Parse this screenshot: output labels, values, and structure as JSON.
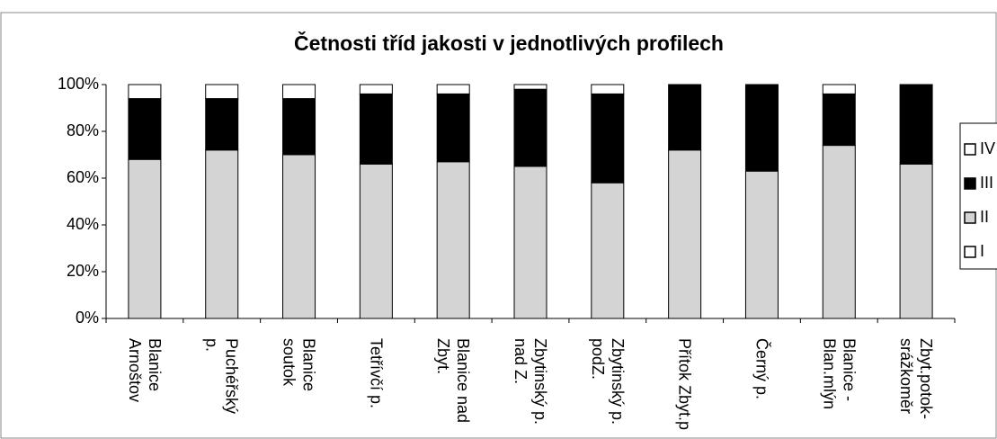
{
  "chart_data": {
    "type": "stacked_bar_percent",
    "title": "Četnosti tříd jakosti v jednotlivých profilech",
    "categories": [
      "Blanice Arnoštov",
      "Puchéřský p.",
      "Blanice soutok",
      "Tetřívčí p.",
      "Blanice nad Zbyt.",
      "Zbytinský p. nad Z.",
      "Zbytinský p. podZ.",
      "Přítok Zbyt.p",
      "Černý p.",
      "Blanice - Blan.mlýn",
      "Zbyt.potok-srážkoměr"
    ],
    "series": [
      {
        "name": "I",
        "color": "#ffffff",
        "values": [
          0,
          0,
          0,
          0,
          0,
          0,
          0,
          0,
          0,
          0,
          0
        ]
      },
      {
        "name": "II",
        "color": "#d4d4d4",
        "values": [
          68,
          72,
          70,
          66,
          67,
          65,
          58,
          72,
          63,
          74,
          66
        ]
      },
      {
        "name": "III",
        "color": "#000000",
        "values": [
          26,
          22,
          24,
          30,
          29,
          33,
          38,
          28,
          37,
          22,
          34
        ]
      },
      {
        "name": "IV",
        "color": "#ffffff",
        "values": [
          6,
          6,
          6,
          4,
          4,
          2,
          4,
          0,
          0,
          4,
          0
        ]
      }
    ],
    "ylim": [
      0,
      100
    ],
    "yticks": [
      {
        "value": 0,
        "label": "0%"
      },
      {
        "value": 20,
        "label": "20%"
      },
      {
        "value": 40,
        "label": "40%"
      },
      {
        "value": 60,
        "label": "60%"
      },
      {
        "value": 80,
        "label": "80%"
      },
      {
        "value": 100,
        "label": "100%"
      }
    ],
    "legend": "right"
  }
}
